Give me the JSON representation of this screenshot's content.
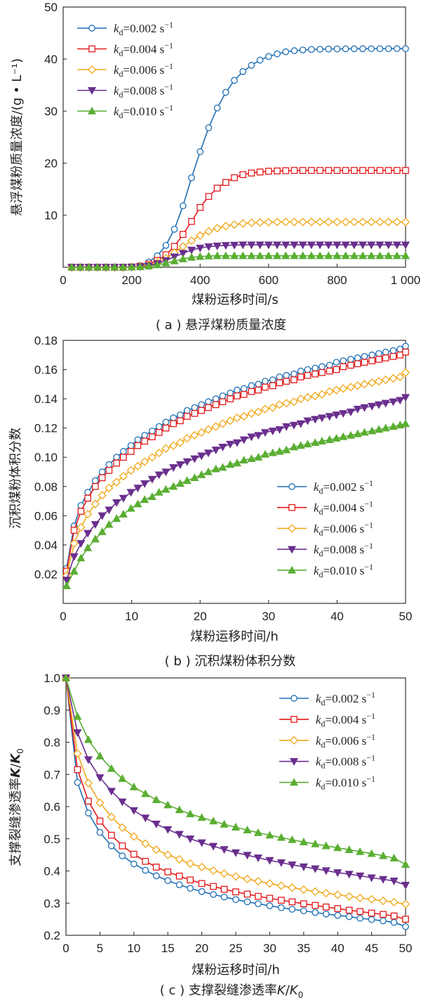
{
  "colors": {
    "series": [
      "#1f6fb5",
      "#e31a1c",
      "#f0a81c",
      "#6a2f8e",
      "#5aae32"
    ],
    "axis": "#231f20"
  },
  "markers": [
    "circle",
    "square",
    "diamond",
    "triangle-down",
    "triangle-up"
  ],
  "legend_labels": [
    {
      "k": "k",
      "sub": "d",
      "value": "=0.002 s",
      "sup": "−1"
    },
    {
      "k": "k",
      "sub": "d",
      "value": "=0.004 s",
      "sup": "−1"
    },
    {
      "k": "k",
      "sub": "d",
      "value": "=0.006 s",
      "sup": "−1"
    },
    {
      "k": "k",
      "sub": "d",
      "value": "=0.008 s",
      "sup": "−1"
    },
    {
      "k": "k",
      "sub": "d",
      "value": "=0.010 s",
      "sup": "−1"
    }
  ],
  "chart_data": [
    {
      "type": "line",
      "panel": "a",
      "caption": "( a ) 悬浮煤粉质量浓度",
      "xlabel": "煤粉运移时间/s",
      "ylabel": "悬浮煤粉质量浓度/(g • L⁻¹)",
      "xlim": [
        0,
        1000
      ],
      "ylim": [
        0,
        50
      ],
      "xticks": [
        0,
        200,
        400,
        600,
        800,
        1000
      ],
      "xtick_labels": [
        "0",
        "200",
        "400",
        "600",
        "800",
        "1 000"
      ],
      "yticks": [
        10,
        20,
        30,
        40,
        50
      ],
      "ytick_labels": [
        "10",
        "20",
        "30",
        "40",
        "50"
      ],
      "legend_position": "top-left",
      "x": [
        25,
        50,
        75,
        100,
        125,
        150,
        175,
        200,
        225,
        250,
        275,
        300,
        325,
        350,
        375,
        400,
        425,
        450,
        475,
        500,
        525,
        550,
        575,
        600,
        625,
        650,
        675,
        700,
        725,
        750,
        775,
        800,
        825,
        850,
        875,
        900,
        925,
        950,
        975,
        1000
      ],
      "series": [
        {
          "name": "kd=0.002 s−1",
          "values": [
            0,
            0,
            0,
            0,
            0,
            0,
            0,
            0.1,
            0.3,
            1.0,
            2.2,
            4.2,
            7.3,
            11.8,
            17.2,
            22.2,
            26.8,
            30.6,
            33.6,
            35.9,
            37.6,
            38.8,
            39.8,
            40.5,
            41.0,
            41.4,
            41.6,
            41.75,
            41.85,
            41.9,
            41.93,
            41.95,
            41.97,
            41.98,
            41.99,
            42,
            42,
            42,
            42,
            42
          ]
        },
        {
          "name": "kd=0.004 s−1",
          "values": [
            0,
            0,
            0,
            0,
            0,
            0,
            0,
            0.05,
            0.2,
            0.6,
            1.3,
            2.4,
            4.0,
            6.3,
            8.8,
            11.5,
            13.6,
            15.2,
            16.3,
            17.2,
            17.8,
            18.1,
            18.3,
            18.45,
            18.5,
            18.55,
            18.6,
            18.6,
            18.6,
            18.6,
            18.6,
            18.6,
            18.6,
            18.6,
            18.6,
            18.6,
            18.6,
            18.6,
            18.6,
            18.6
          ]
        },
        {
          "name": "kd=0.006 s−1",
          "values": [
            0,
            0,
            0,
            0,
            0,
            0,
            0,
            0.05,
            0.15,
            0.4,
            0.9,
            1.7,
            2.8,
            4.0,
            5.1,
            6.1,
            6.9,
            7.5,
            7.9,
            8.2,
            8.4,
            8.55,
            8.6,
            8.65,
            8.7,
            8.7,
            8.7,
            8.7,
            8.7,
            8.7,
            8.7,
            8.7,
            8.7,
            8.7,
            8.7,
            8.7,
            8.7,
            8.7,
            8.7,
            8.7
          ]
        },
        {
          "name": "kd=0.008 s−1",
          "values": [
            0,
            0,
            0,
            0,
            0,
            0,
            0,
            0.03,
            0.1,
            0.3,
            0.7,
            1.3,
            2.0,
            2.7,
            3.3,
            3.7,
            3.95,
            4.1,
            4.2,
            4.25,
            4.3,
            4.3,
            4.3,
            4.3,
            4.3,
            4.3,
            4.3,
            4.3,
            4.3,
            4.3,
            4.3,
            4.3,
            4.3,
            4.3,
            4.3,
            4.3,
            4.3,
            4.3,
            4.3,
            4.3
          ]
        },
        {
          "name": "kd=0.010 s−1",
          "values": [
            0,
            0,
            0,
            0,
            0,
            0,
            0,
            0.02,
            0.08,
            0.2,
            0.45,
            0.8,
            1.2,
            1.6,
            1.9,
            2.05,
            2.15,
            2.2,
            2.2,
            2.2,
            2.2,
            2.2,
            2.2,
            2.2,
            2.2,
            2.2,
            2.2,
            2.2,
            2.2,
            2.2,
            2.2,
            2.2,
            2.2,
            2.2,
            2.2,
            2.2,
            2.2,
            2.2,
            2.2,
            2.2
          ]
        }
      ]
    },
    {
      "type": "line",
      "panel": "b",
      "caption": "( b ) 沉积煤粉体积分数",
      "xlabel": "煤粉运移时间/h",
      "ylabel": "沉积煤粉体积分数",
      "xlim": [
        0,
        50
      ],
      "ylim": [
        0,
        0.18
      ],
      "xticks": [
        0,
        10,
        20,
        30,
        40,
        50
      ],
      "xtick_labels": [
        "0",
        "10",
        "20",
        "30",
        "40",
        "50"
      ],
      "yticks": [
        0.02,
        0.04,
        0.06,
        0.08,
        0.1,
        0.12,
        0.14,
        0.16,
        0.18
      ],
      "ytick_labels": [
        "0.02",
        "0.04",
        "0.06",
        "0.08",
        "0.10",
        "0.12",
        "0.14",
        "0.16",
        "0.18"
      ],
      "legend_position": "bottom-right",
      "x": [
        0.5,
        1.6,
        2.6,
        3.6,
        4.7,
        5.7,
        6.7,
        7.8,
        8.8,
        9.9,
        10.9,
        11.9,
        13,
        14,
        15,
        16.1,
        17.1,
        18.1,
        19.2,
        20.2,
        21.2,
        22.3,
        23.3,
        24.4,
        25.4,
        26.4,
        27.5,
        28.5,
        29.5,
        30.6,
        31.6,
        32.6,
        33.7,
        34.7,
        35.7,
        36.8,
        37.8,
        38.9,
        39.9,
        40.9,
        42,
        43,
        44,
        45.1,
        46.1,
        47.1,
        48.2,
        49.2,
        50
      ],
      "series": [
        {
          "name": "kd=0.002 s−1",
          "values": [
            0.024,
            0.053,
            0.067,
            0.076,
            0.084,
            0.09,
            0.095,
            0.1,
            0.104,
            0.108,
            0.112,
            0.115,
            0.118,
            0.121,
            0.124,
            0.127,
            0.129,
            0.132,
            0.134,
            0.136,
            0.138,
            0.14,
            0.142,
            0.144,
            0.146,
            0.147,
            0.149,
            0.15,
            0.152,
            0.153,
            0.155,
            0.156,
            0.157,
            0.159,
            0.16,
            0.161,
            0.162,
            0.163,
            0.165,
            0.166,
            0.167,
            0.168,
            0.169,
            0.17,
            0.171,
            0.172,
            0.173,
            0.174,
            0.176
          ]
        },
        {
          "name": "kd=0.004 s−1",
          "values": [
            0.022,
            0.05,
            0.063,
            0.072,
            0.08,
            0.086,
            0.091,
            0.096,
            0.1,
            0.104,
            0.108,
            0.111,
            0.114,
            0.117,
            0.12,
            0.123,
            0.125,
            0.128,
            0.13,
            0.132,
            0.134,
            0.136,
            0.138,
            0.14,
            0.142,
            0.143,
            0.145,
            0.146,
            0.148,
            0.149,
            0.151,
            0.152,
            0.153,
            0.155,
            0.156,
            0.157,
            0.158,
            0.159,
            0.16,
            0.162,
            0.163,
            0.164,
            0.165,
            0.166,
            0.167,
            0.168,
            0.169,
            0.17,
            0.172
          ]
        },
        {
          "name": "kd=0.006 s−1",
          "values": [
            0.019,
            0.041,
            0.052,
            0.061,
            0.068,
            0.074,
            0.079,
            0.083,
            0.087,
            0.091,
            0.094,
            0.097,
            0.1,
            0.103,
            0.106,
            0.108,
            0.11,
            0.113,
            0.115,
            0.117,
            0.119,
            0.121,
            0.123,
            0.125,
            0.127,
            0.128,
            0.13,
            0.131,
            0.133,
            0.134,
            0.136,
            0.137,
            0.138,
            0.14,
            0.141,
            0.142,
            0.143,
            0.145,
            0.146,
            0.147,
            0.148,
            0.149,
            0.15,
            0.151,
            0.152,
            0.153,
            0.154,
            0.155,
            0.158
          ]
        },
        {
          "name": "kd=0.008 s−1",
          "values": [
            0.016,
            0.032,
            0.041,
            0.048,
            0.054,
            0.06,
            0.064,
            0.069,
            0.072,
            0.076,
            0.079,
            0.082,
            0.085,
            0.088,
            0.09,
            0.093,
            0.095,
            0.097,
            0.099,
            0.101,
            0.103,
            0.105,
            0.107,
            0.109,
            0.11,
            0.112,
            0.114,
            0.115,
            0.117,
            0.118,
            0.119,
            0.121,
            0.122,
            0.123,
            0.125,
            0.126,
            0.127,
            0.128,
            0.129,
            0.13,
            0.131,
            0.133,
            0.134,
            0.135,
            0.136,
            0.137,
            0.138,
            0.139,
            0.141
          ]
        },
        {
          "name": "kd=0.010 s−1",
          "values": [
            0.012,
            0.022,
            0.031,
            0.038,
            0.044,
            0.049,
            0.054,
            0.058,
            0.061,
            0.065,
            0.068,
            0.071,
            0.073,
            0.076,
            0.078,
            0.08,
            0.082,
            0.084,
            0.086,
            0.088,
            0.09,
            0.092,
            0.093,
            0.095,
            0.096,
            0.098,
            0.099,
            0.1,
            0.102,
            0.103,
            0.104,
            0.105,
            0.107,
            0.108,
            0.109,
            0.11,
            0.111,
            0.112,
            0.113,
            0.114,
            0.115,
            0.116,
            0.117,
            0.118,
            0.119,
            0.12,
            0.121,
            0.122,
            0.123
          ]
        }
      ]
    },
    {
      "type": "line",
      "panel": "c",
      "caption": "( c ) 支撑裂缝渗透率K/K0",
      "caption_parts": [
        "( c ) 支撑裂缝渗透率",
        "K",
        "/",
        "K",
        "0"
      ],
      "xlabel": "煤粉运移时间/h",
      "ylabel": "支撑裂缝渗透率K/K0",
      "ylabel_parts": [
        "支撑裂缝渗透率",
        "K",
        "/",
        "K",
        "0"
      ],
      "xlim": [
        0,
        50
      ],
      "ylim": [
        0.2,
        1.0
      ],
      "xticks": [
        0,
        5,
        10,
        15,
        20,
        25,
        30,
        35,
        40,
        45,
        50
      ],
      "xtick_labels": [
        "0",
        "5",
        "10",
        "15",
        "20",
        "25",
        "30",
        "35",
        "40",
        "45",
        "50"
      ],
      "yticks": [
        0.2,
        0.3,
        0.4,
        0.5,
        0.6,
        0.7,
        0.8,
        0.9,
        1.0
      ],
      "ytick_labels": [
        "0.2",
        "0.3",
        "0.4",
        "0.5",
        "0.6",
        "0.7",
        "0.8",
        "0.9",
        "1.0"
      ],
      "legend_position": "top-right",
      "x": [
        0,
        1.7,
        3.3,
        5,
        6.7,
        8.3,
        10,
        11.7,
        13.3,
        15,
        16.7,
        18.3,
        20,
        21.7,
        23.3,
        25,
        26.7,
        28.3,
        30,
        31.7,
        33.3,
        35,
        36.7,
        38.3,
        40,
        41.7,
        43.3,
        45,
        46.7,
        48.3,
        50
      ],
      "series": [
        {
          "name": "kd=0.002 s−1",
          "values": [
            1.0,
            0.675,
            0.58,
            0.52,
            0.478,
            0.447,
            0.422,
            0.402,
            0.385,
            0.37,
            0.357,
            0.346,
            0.336,
            0.327,
            0.319,
            0.311,
            0.304,
            0.298,
            0.292,
            0.286,
            0.281,
            0.276,
            0.271,
            0.266,
            0.262,
            0.258,
            0.253,
            0.249,
            0.245,
            0.24,
            0.227
          ]
        },
        {
          "name": "kd=0.004 s−1",
          "values": [
            1.0,
            0.715,
            0.617,
            0.555,
            0.511,
            0.478,
            0.452,
            0.43,
            0.412,
            0.397,
            0.384,
            0.372,
            0.361,
            0.352,
            0.343,
            0.335,
            0.328,
            0.321,
            0.315,
            0.309,
            0.304,
            0.298,
            0.293,
            0.288,
            0.283,
            0.278,
            0.274,
            0.269,
            0.265,
            0.26,
            0.25
          ]
        },
        {
          "name": "kd=0.006 s−1",
          "values": [
            1.0,
            0.765,
            0.673,
            0.612,
            0.568,
            0.535,
            0.507,
            0.485,
            0.466,
            0.45,
            0.436,
            0.423,
            0.412,
            0.401,
            0.392,
            0.383,
            0.375,
            0.368,
            0.361,
            0.354,
            0.348,
            0.342,
            0.336,
            0.331,
            0.326,
            0.321,
            0.316,
            0.312,
            0.307,
            0.303,
            0.297
          ]
        },
        {
          "name": "kd=0.008 s−1",
          "values": [
            1.0,
            0.83,
            0.746,
            0.69,
            0.648,
            0.615,
            0.588,
            0.565,
            0.546,
            0.529,
            0.514,
            0.5,
            0.488,
            0.477,
            0.467,
            0.457,
            0.449,
            0.441,
            0.433,
            0.426,
            0.419,
            0.413,
            0.407,
            0.401,
            0.395,
            0.39,
            0.385,
            0.379,
            0.374,
            0.369,
            0.356
          ]
        },
        {
          "name": "kd=0.010 s−1",
          "values": [
            1.0,
            0.88,
            0.808,
            0.757,
            0.718,
            0.687,
            0.661,
            0.64,
            0.621,
            0.605,
            0.59,
            0.577,
            0.566,
            0.555,
            0.545,
            0.536,
            0.527,
            0.519,
            0.511,
            0.504,
            0.497,
            0.49,
            0.484,
            0.478,
            0.472,
            0.466,
            0.46,
            0.454,
            0.447,
            0.44,
            0.42
          ]
        }
      ]
    }
  ]
}
